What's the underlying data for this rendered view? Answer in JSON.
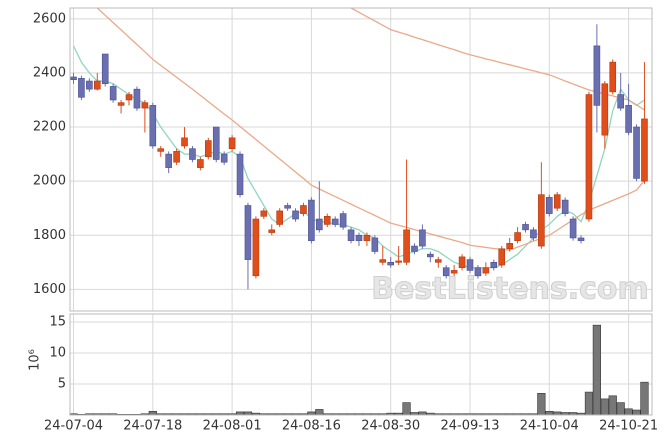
{
  "chart_data": {
    "type": "candlestick",
    "watermark": "BestListens.com",
    "volume_label": "10⁶",
    "categories": [
      "24-07-04",
      null,
      null,
      null,
      null,
      null,
      null,
      null,
      null,
      null,
      "24-07-18",
      null,
      null,
      null,
      null,
      null,
      null,
      null,
      null,
      null,
      "24-08-01",
      null,
      null,
      null,
      null,
      null,
      null,
      null,
      null,
      null,
      "24-08-16",
      null,
      null,
      null,
      null,
      null,
      null,
      null,
      null,
      null,
      "24-08-30",
      null,
      null,
      null,
      null,
      null,
      null,
      null,
      null,
      null,
      "24-09-13",
      null,
      null,
      null,
      null,
      null,
      null,
      null,
      null,
      null,
      "24-10-04",
      null,
      null,
      null,
      null,
      null,
      null,
      null,
      null,
      null,
      "24-10-21",
      null,
      null
    ],
    "open": [
      2385,
      2380,
      2370,
      2340,
      2470,
      2350,
      2280,
      2300,
      2340,
      2270,
      2280,
      2110,
      2100,
      2070,
      2130,
      2120,
      2050,
      2090,
      2200,
      2100,
      2120,
      2100,
      1910,
      1650,
      1870,
      1810,
      1840,
      1910,
      1890,
      1880,
      1930,
      1860,
      1840,
      1860,
      1880,
      1820,
      1800,
      1780,
      1790,
      1700,
      1700,
      1700,
      1700,
      1760,
      1820,
      1730,
      1700,
      1680,
      1660,
      1680,
      1710,
      1680,
      1660,
      1700,
      1690,
      1750,
      1780,
      1840,
      1820,
      1760,
      1940,
      1900,
      1930,
      1860,
      1790,
      1860,
      2500,
      2170,
      2330,
      2320,
      2280,
      2200,
      2000
    ],
    "high": [
      2400,
      2390,
      2380,
      2400,
      2470,
      2360,
      2300,
      2330,
      2350,
      2300,
      2290,
      2130,
      2110,
      2120,
      2200,
      2130,
      2090,
      2160,
      2200,
      2110,
      2170,
      2110,
      1920,
      1870,
      1900,
      1840,
      1900,
      1920,
      1900,
      1920,
      1940,
      2000,
      1880,
      1870,
      1890,
      1830,
      1810,
      1810,
      1800,
      1760,
      1720,
      1760,
      2080,
      1770,
      1840,
      1740,
      1720,
      1690,
      1690,
      1730,
      1720,
      1690,
      1700,
      1710,
      1760,
      1790,
      1830,
      1850,
      1830,
      2070,
      1950,
      1960,
      1940,
      1870,
      1800,
      2330,
      2580,
      2370,
      2450,
      2400,
      2360,
      2210,
      2440
    ],
    "low": [
      2360,
      2300,
      2330,
      2335,
      2350,
      2290,
      2250,
      2280,
      2260,
      2180,
      2120,
      2090,
      2030,
      2060,
      2120,
      2070,
      2040,
      2080,
      2070,
      2060,
      2110,
      1940,
      1600,
      1640,
      1860,
      1800,
      1830,
      1890,
      1850,
      1870,
      1770,
      1810,
      1830,
      1830,
      1820,
      1770,
      1760,
      1760,
      1730,
      1690,
      1680,
      1690,
      1690,
      1730,
      1750,
      1700,
      1680,
      1640,
      1640,
      1670,
      1660,
      1640,
      1650,
      1670,
      1680,
      1740,
      1770,
      1810,
      1780,
      1750,
      1870,
      1890,
      1870,
      1780,
      1770,
      1850,
      2180,
      2120,
      2320,
      2260,
      2170,
      2000,
      1990
    ],
    "close": [
      2375,
      2310,
      2340,
      2370,
      2360,
      2300,
      2290,
      2320,
      2270,
      2290,
      2130,
      2120,
      2050,
      2110,
      2160,
      2080,
      2080,
      2150,
      2080,
      2070,
      2160,
      1950,
      1710,
      1860,
      1890,
      1820,
      1890,
      1900,
      1860,
      1910,
      1780,
      1820,
      1870,
      1840,
      1830,
      1780,
      1780,
      1800,
      1740,
      1710,
      1690,
      1705,
      1820,
      1740,
      1760,
      1720,
      1710,
      1650,
      1670,
      1720,
      1670,
      1650,
      1680,
      1680,
      1750,
      1770,
      1810,
      1820,
      1790,
      1950,
      1880,
      1950,
      1880,
      1790,
      1780,
      2320,
      2280,
      2360,
      2440,
      2270,
      2180,
      2010,
      2230
    ],
    "volume": [
      0.2,
      0.1,
      0.2,
      0.2,
      0.2,
      0.2,
      0.1,
      0.1,
      0.1,
      0.2,
      0.6,
      0.2,
      0.2,
      0.2,
      0.2,
      0.2,
      0.2,
      0.2,
      0.2,
      0.2,
      0.2,
      0.5,
      0.5,
      0.3,
      0.2,
      0.2,
      0.2,
      0.2,
      0.2,
      0.2,
      0.5,
      0.9,
      0.2,
      0.2,
      0.2,
      0.2,
      0.2,
      0.2,
      0.2,
      0.2,
      0.3,
      0.3,
      2.0,
      0.4,
      0.5,
      0.3,
      0.2,
      0.2,
      0.2,
      0.2,
      0.2,
      0.2,
      0.2,
      0.2,
      0.2,
      0.2,
      0.2,
      0.2,
      0.2,
      3.5,
      0.6,
      0.5,
      0.4,
      0.4,
      0.3,
      3.7,
      14.5,
      2.6,
      3.1,
      2.0,
      1.0,
      0.8,
      5.3
    ],
    "up_color": "#e04e1c",
    "down_color": "#6a6fb0",
    "volume_color": "#777777",
    "ma": [
      {
        "color": "#8fd6c0",
        "values": [
          2500,
          2440,
          2400,
          2370,
          2370,
          2360,
          2340,
          2320,
          2300,
          2290,
          2250,
          2200,
          2160,
          2120,
          2100,
          2100,
          2090,
          2100,
          2110,
          2100,
          2110,
          2090,
          2010,
          1960,
          1910,
          1860,
          1840,
          1860,
          1880,
          1890,
          1860,
          1850,
          1850,
          1840,
          1840,
          1830,
          1820,
          1800,
          1790,
          1760,
          1740,
          1720,
          1730,
          1740,
          1750,
          1750,
          1740,
          1720,
          1700,
          1690,
          1680,
          1680,
          1680,
          1680,
          1690,
          1710,
          1730,
          1760,
          1790,
          1820,
          1840,
          1870,
          1890,
          1880,
          1850,
          1920,
          2020,
          2120,
          2260,
          2340,
          2300,
          2280,
          2300
        ]
      },
      {
        "color": "#eba98a",
        "values": [
          null,
          null,
          null,
          2640,
          2613,
          2586,
          2559,
          2532,
          2505,
          2478,
          2450,
          2428,
          2406,
          2384,
          2362,
          2340,
          2317,
          2294,
          2271,
          2248,
          2226,
          2202,
          2178,
          2154,
          2130,
          2106,
          2082,
          2058,
          2034,
          2010,
          1985,
          1971,
          1957,
          1943,
          1929,
          1915,
          1901,
          1887,
          1873,
          1859,
          1845,
          1837,
          1829,
          1821,
          1813,
          1805,
          1797,
          1789,
          1781,
          1773,
          1763,
          1759,
          1755,
          1751,
          1748,
          1745,
          1756,
          1767,
          1778,
          1789,
          1800,
          1819,
          1838,
          1857,
          1876,
          1893,
          1905,
          1917,
          1929,
          1941,
          1953,
          1967,
          2003
        ]
      },
      {
        "color": "#eba98a",
        "values": [
          null,
          null,
          null,
          null,
          null,
          null,
          null,
          null,
          null,
          null,
          null,
          null,
          null,
          null,
          null,
          null,
          null,
          null,
          null,
          null,
          null,
          null,
          null,
          null,
          null,
          null,
          null,
          null,
          null,
          null,
          null,
          null,
          null,
          null,
          null,
          2640,
          2624,
          2608,
          2592,
          2576,
          2560,
          2551,
          2542,
          2532,
          2523,
          2514,
          2504,
          2495,
          2486,
          2476,
          2467,
          2460,
          2452,
          2445,
          2437,
          2430,
          2423,
          2415,
          2408,
          2400,
          2393,
          2382,
          2370,
          2359,
          2348,
          2337,
          2330,
          2322,
          2315,
          2307,
          2300,
          2282,
          2263
        ]
      }
    ],
    "ylim": [
      1520,
      2640
    ],
    "yticks": [
      1600,
      1800,
      2000,
      2200,
      2400,
      2600
    ],
    "vlim": [
      0,
      16.3
    ],
    "vticks": [
      5,
      10,
      15
    ],
    "grid": true
  }
}
